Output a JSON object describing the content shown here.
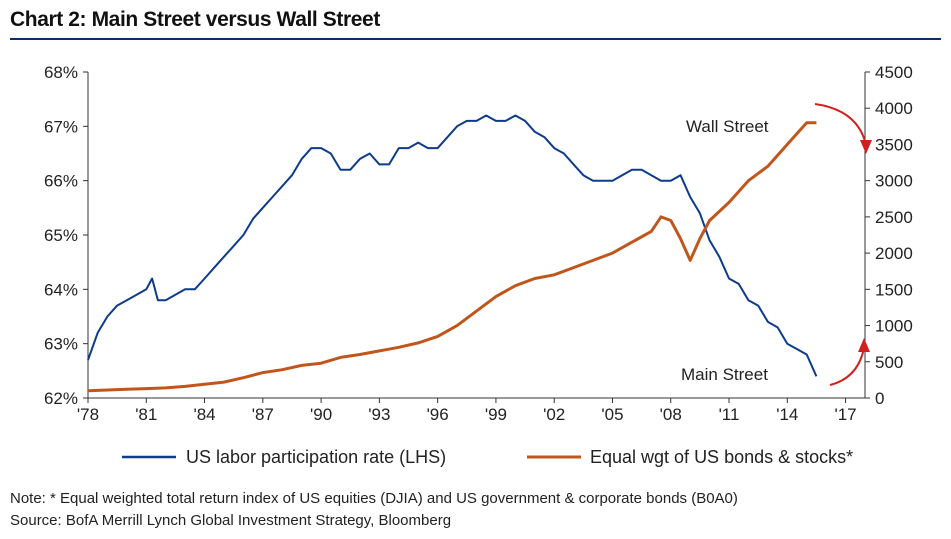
{
  "title": "Chart 2: Main Street versus Wall Street",
  "note": "Note: * Equal weighted total return index of US equities (DJIA) and US government & corporate bonds (B0A0)",
  "source": "Source: BofA Merrill Lynch Global Investment Strategy, Bloomberg",
  "colors": {
    "series_lhs": "#0d3b8a",
    "series_rhs": "#c0561c",
    "arrows": "#d21f1f",
    "title_rule": "#0a2f6e"
  },
  "chart_data": {
    "type": "line",
    "title": "Chart 2: Main Street versus Wall Street",
    "xlabel": "",
    "ylabel": "",
    "x_ticks": [
      "'78",
      "'81",
      "'84",
      "'87",
      "'90",
      "'93",
      "'96",
      "'99",
      "'02",
      "'05",
      "'08",
      "'11",
      "'14",
      "'17"
    ],
    "xlim": [
      1978,
      2018
    ],
    "y_left": {
      "ylim": [
        62,
        68
      ],
      "ticks": [
        "62%",
        "63%",
        "64%",
        "65%",
        "66%",
        "67%",
        "68%"
      ]
    },
    "y_right": {
      "ylim": [
        0,
        4500
      ],
      "ticks": [
        "0",
        "500",
        "1000",
        "1500",
        "2000",
        "2500",
        "3000",
        "3500",
        "4000",
        "4500"
      ]
    },
    "legend_position": "bottom",
    "annotations": [
      "Wall Street",
      "Main Street"
    ],
    "series": [
      {
        "name": "US labor participation rate (LHS)",
        "axis": "left",
        "x": [
          1978.0,
          1978.5,
          1979.0,
          1979.5,
          1980.0,
          1980.5,
          1981.0,
          1981.3,
          1981.6,
          1982.0,
          1982.5,
          1983.0,
          1983.5,
          1984.0,
          1984.5,
          1985.0,
          1985.5,
          1986.0,
          1986.5,
          1987.0,
          1987.5,
          1988.0,
          1988.5,
          1989.0,
          1989.5,
          1990.0,
          1990.5,
          1991.0,
          1991.5,
          1992.0,
          1992.5,
          1993.0,
          1993.5,
          1994.0,
          1994.5,
          1995.0,
          1995.5,
          1996.0,
          1996.5,
          1997.0,
          1997.5,
          1998.0,
          1998.5,
          1999.0,
          1999.5,
          2000.0,
          2000.5,
          2001.0,
          2001.5,
          2002.0,
          2002.5,
          2003.0,
          2003.5,
          2004.0,
          2004.5,
          2005.0,
          2005.5,
          2006.0,
          2006.5,
          2007.0,
          2007.5,
          2008.0,
          2008.5,
          2009.0,
          2009.5,
          2010.0,
          2010.5,
          2011.0,
          2011.5,
          2012.0,
          2012.5,
          2013.0,
          2013.5,
          2014.0,
          2014.5,
          2015.0,
          2015.5
        ],
        "values": [
          62.7,
          63.2,
          63.5,
          63.7,
          63.8,
          63.9,
          64.0,
          64.2,
          63.8,
          63.8,
          63.9,
          64.0,
          64.0,
          64.2,
          64.4,
          64.6,
          64.8,
          65.0,
          65.3,
          65.5,
          65.7,
          65.9,
          66.1,
          66.4,
          66.6,
          66.6,
          66.5,
          66.2,
          66.2,
          66.4,
          66.5,
          66.3,
          66.3,
          66.6,
          66.6,
          66.7,
          66.6,
          66.6,
          66.8,
          67.0,
          67.1,
          67.1,
          67.2,
          67.1,
          67.1,
          67.2,
          67.1,
          66.9,
          66.8,
          66.6,
          66.5,
          66.3,
          66.1,
          66.0,
          66.0,
          66.0,
          66.1,
          66.2,
          66.2,
          66.1,
          66.0,
          66.0,
          66.1,
          65.7,
          65.4,
          64.9,
          64.6,
          64.2,
          64.1,
          63.8,
          63.7,
          63.4,
          63.3,
          63.0,
          62.9,
          62.8,
          62.4
        ]
      },
      {
        "name": "Equal wgt of US bonds & stocks*",
        "axis": "right",
        "x": [
          1978.0,
          1979.0,
          1980.0,
          1981.0,
          1982.0,
          1983.0,
          1984.0,
          1985.0,
          1986.0,
          1987.0,
          1988.0,
          1989.0,
          1990.0,
          1991.0,
          1992.0,
          1993.0,
          1994.0,
          1995.0,
          1996.0,
          1997.0,
          1998.0,
          1999.0,
          2000.0,
          2001.0,
          2002.0,
          2003.0,
          2004.0,
          2005.0,
          2006.0,
          2007.0,
          2007.5,
          2008.0,
          2008.5,
          2009.0,
          2009.5,
          2010.0,
          2011.0,
          2012.0,
          2013.0,
          2014.0,
          2015.0,
          2015.5
        ],
        "values": [
          100,
          110,
          120,
          130,
          140,
          160,
          190,
          220,
          280,
          350,
          390,
          450,
          480,
          560,
          600,
          650,
          700,
          760,
          850,
          1000,
          1200,
          1400,
          1550,
          1650,
          1700,
          1800,
          1900,
          2000,
          2150,
          2300,
          2500,
          2450,
          2200,
          1900,
          2200,
          2450,
          2700,
          3000,
          3200,
          3500,
          3800,
          3800
        ]
      }
    ]
  }
}
